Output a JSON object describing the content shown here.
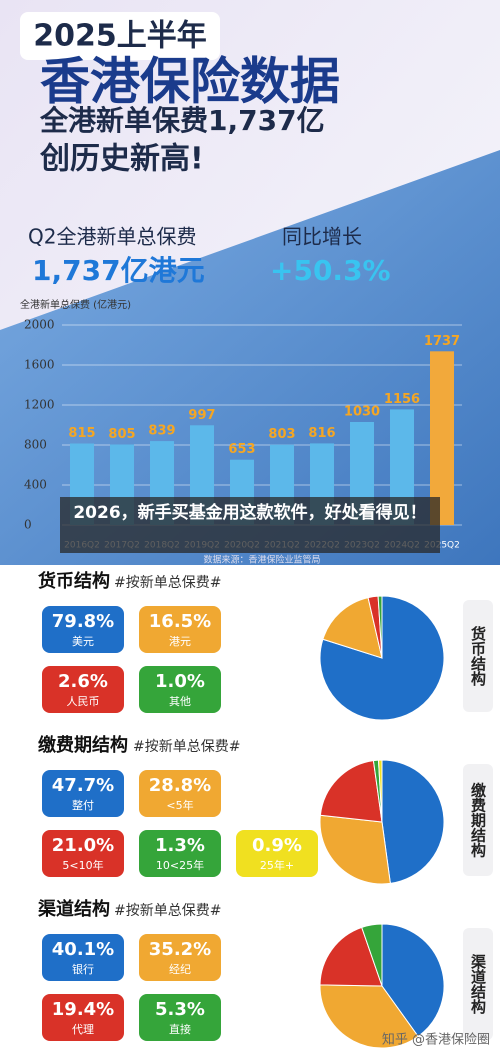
{
  "header": {
    "badge": "2025上半年",
    "title": "香港保险数据",
    "line1": "全港新单保费1,737亿",
    "line2": "创历史新高!"
  },
  "kpis": [
    {
      "label": "Q2全港新单总保费",
      "value": "1,737亿港元"
    },
    {
      "label": "同比增长",
      "value": "+50.3%"
    }
  ],
  "overlay": "2026，新手买基金用这款软件，好处看得见！",
  "watermark": "知乎 @香港保险圈",
  "chart_data": [
    {
      "type": "bar",
      "ylabel": "全港新单总保费 (亿港元)",
      "source": "数据来源：香港保险业监管局",
      "categories": [
        "2016Q2",
        "2017Q2",
        "2018Q2",
        "2019Q2",
        "2020Q2",
        "2021Q2",
        "2022Q2",
        "2023Q2",
        "2024Q2",
        "2025Q2"
      ],
      "values": [
        815,
        805,
        839,
        997,
        653,
        803,
        816,
        1030,
        1156,
        1737
      ],
      "colors": [
        "#5cb8ea",
        "#5cb8ea",
        "#5cb8ea",
        "#5cb8ea",
        "#5cb8ea",
        "#5cb8ea",
        "#5cb8ea",
        "#5cb8ea",
        "#5cb8ea",
        "#f2a93b"
      ],
      "label_color": "#f5a623",
      "ylim": [
        0,
        2000
      ],
      "yticks": [
        0,
        400,
        800,
        1200,
        1600,
        2000
      ],
      "grid": true
    },
    {
      "type": "pie",
      "title": "货币结构",
      "subtitle": "#按新单总保费#",
      "side_label": "货币结构",
      "categories": [
        "美元",
        "港元",
        "人民币",
        "其他"
      ],
      "values": [
        79.8,
        16.5,
        2.6,
        1.0
      ],
      "value_labels": [
        "79.8%",
        "16.5%",
        "2.6%",
        "1.0%"
      ],
      "colors": [
        "#1f6fc8",
        "#f0a832",
        "#d93228",
        "#35a53a"
      ]
    },
    {
      "type": "pie",
      "title": "缴费期结构",
      "subtitle": "#按新单总保费#",
      "side_label": "缴费期结构",
      "categories": [
        "整付",
        "<5年",
        "5<10年",
        "10<25年",
        "25年+"
      ],
      "values": [
        47.7,
        28.8,
        21.0,
        1.3,
        0.9
      ],
      "value_labels": [
        "47.7%",
        "28.8%",
        "21.0%",
        "1.3%",
        "0.9%"
      ],
      "colors": [
        "#1f6fc8",
        "#f0a832",
        "#d93228",
        "#35a53a",
        "#f0e020"
      ]
    },
    {
      "type": "pie",
      "title": "渠道结构",
      "subtitle": "#按新单总保费#",
      "side_label": "渠道结构",
      "categories": [
        "银行",
        "经纪",
        "代理",
        "直接"
      ],
      "values": [
        40.1,
        35.2,
        19.4,
        5.3
      ],
      "value_labels": [
        "40.1%",
        "35.2%",
        "19.4%",
        "5.3%"
      ],
      "colors": [
        "#1f6fc8",
        "#f0a832",
        "#d93228",
        "#35a53a"
      ]
    }
  ]
}
